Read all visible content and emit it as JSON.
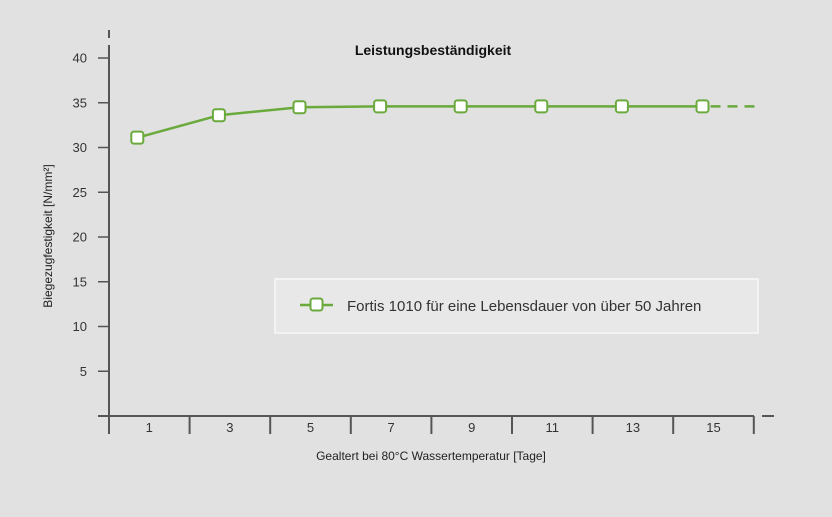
{
  "colors": {
    "background": "#e1e1e1",
    "axis": "#555555",
    "series": "#6aaa3c",
    "marker_fill": "#ffffff",
    "legend_bg": "#e8e8e8",
    "legend_border": "#f7f7f7"
  },
  "chart_data": {
    "type": "line",
    "title": "Leistungsbeständigkeit",
    "xlabel": "Gealtert bei 80°C Wassertemperatur [Tage]",
    "ylabel": "Biegezugfestigkeit [N/mm²]",
    "x_ticks": [
      "1",
      "3",
      "5",
      "7",
      "9",
      "11",
      "13",
      "15"
    ],
    "y_ticks": [
      5,
      10,
      15,
      20,
      25,
      30,
      35,
      40
    ],
    "ylim": [
      0,
      40
    ],
    "grid": false,
    "legend_position": "right",
    "series": [
      {
        "name": "Fortis 1010 für eine Lebensdauer von über 50 Jahren",
        "x": [
          1,
          3,
          5,
          7,
          9,
          11,
          13,
          15
        ],
        "y": [
          31.1,
          33.6,
          34.5,
          34.6,
          34.6,
          34.6,
          34.6,
          34.6
        ],
        "extends_dashed": true
      }
    ]
  }
}
